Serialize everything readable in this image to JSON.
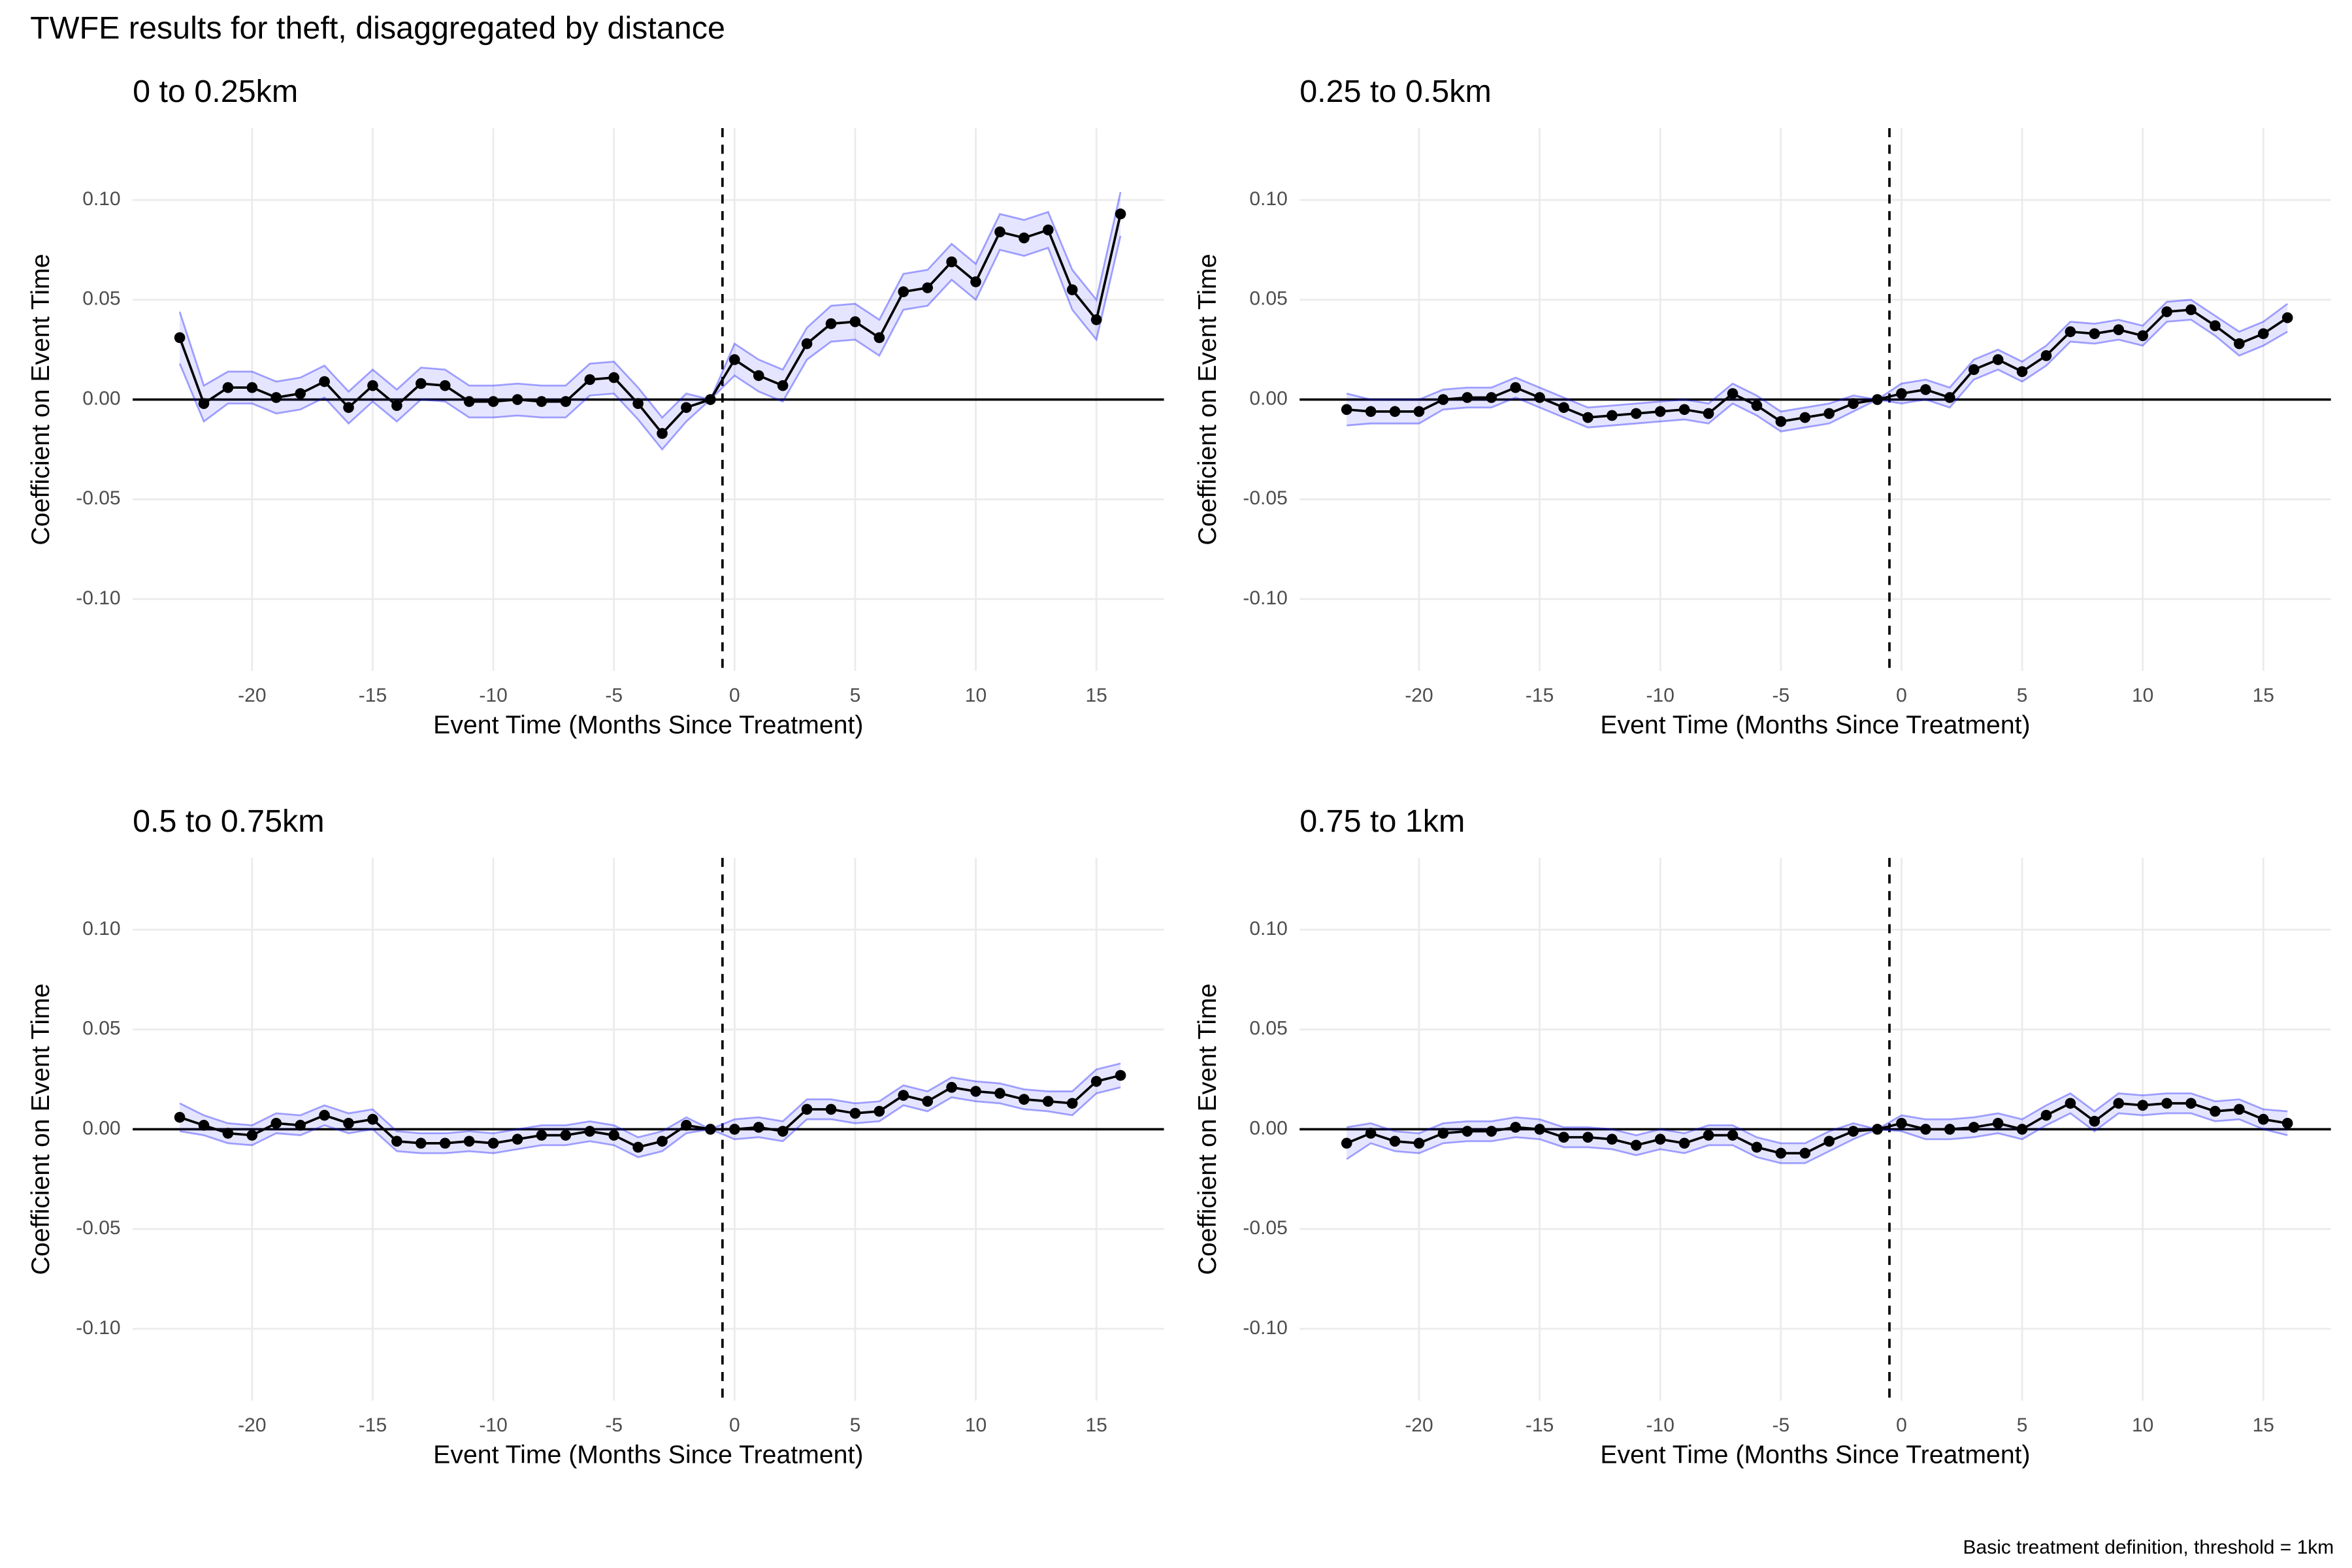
{
  "title": "TWFE results for theft, disaggregated by distance",
  "caption": "Basic treatment definition, threshold = 1km",
  "chart_data": [
    {
      "type": "line",
      "title": "0 to 0.25km",
      "xlabel": "Event Time (Months Since Treatment)",
      "ylabel": "Coefficient on Event Time",
      "x": [
        -23,
        -22,
        -21,
        -20,
        -19,
        -18,
        -17,
        -16,
        -15,
        -14,
        -13,
        -12,
        -11,
        -10,
        -9,
        -8,
        -7,
        -6,
        -5,
        -4,
        -3,
        -2,
        -1,
        0,
        1,
        2,
        3,
        4,
        5,
        6,
        7,
        8,
        9,
        10,
        11,
        12,
        13,
        14,
        15,
        16
      ],
      "series": [
        {
          "color": "#000000",
          "band_color": "#0000ff",
          "values": [
            0.031,
            -0.002,
            0.006,
            0.006,
            0.001,
            0.003,
            0.009,
            -0.004,
            0.007,
            -0.003,
            0.008,
            0.007,
            -0.001,
            -0.001,
            0.0,
            -0.001,
            -0.001,
            0.01,
            0.011,
            -0.002,
            -0.017,
            -0.004,
            0,
            0.02,
            0.012,
            0.007,
            0.028,
            0.038,
            0.039,
            0.031,
            0.054,
            0.056,
            0.069,
            0.059,
            0.084,
            0.081,
            0.085,
            0.055,
            0.04,
            0.093
          ],
          "errors": [
            0.013,
            0.009,
            0.008,
            0.008,
            0.008,
            0.008,
            0.008,
            0.008,
            0.008,
            0.008,
            0.008,
            0.008,
            0.008,
            0.008,
            0.008,
            0.008,
            0.008,
            0.008,
            0.008,
            0.008,
            0.008,
            0.007,
            0,
            0.008,
            0.008,
            0.008,
            0.008,
            0.009,
            0.009,
            0.009,
            0.009,
            0.009,
            0.009,
            0.009,
            0.009,
            0.009,
            0.009,
            0.01,
            0.01,
            0.011
          ]
        }
      ],
      "xlim": [
        -24.95,
        17.8
      ],
      "ylim": [
        -0.136,
        0.136
      ],
      "xticks": [
        -20,
        -15,
        -10,
        -5,
        0,
        5,
        10,
        15
      ],
      "yticks": [
        {
          "value": -0.1,
          "label": "-0.10"
        },
        -0.05,
        {
          "value": 0,
          "label": "0.00"
        },
        0.05,
        {
          "value": 0.1,
          "label": "0.10"
        }
      ],
      "vline": -0.5,
      "hline": 0,
      "grid": true
    },
    {
      "type": "line",
      "title": "0.25 to 0.5km",
      "xlabel": "Event Time (Months Since Treatment)",
      "ylabel": "Coefficient on Event Time",
      "x": [
        -23,
        -22,
        -21,
        -20,
        -19,
        -18,
        -17,
        -16,
        -15,
        -14,
        -13,
        -12,
        -11,
        -10,
        -9,
        -8,
        -7,
        -6,
        -5,
        -4,
        -3,
        -2,
        -1,
        0,
        1,
        2,
        3,
        4,
        5,
        6,
        7,
        8,
        9,
        10,
        11,
        12,
        13,
        14,
        15,
        16
      ],
      "series": [
        {
          "color": "#000000",
          "band_color": "#0000ff",
          "values": [
            -0.005,
            -0.006,
            -0.006,
            -0.006,
            0.0,
            0.001,
            0.001,
            0.006,
            0.001,
            -0.004,
            -0.009,
            -0.008,
            -0.007,
            -0.006,
            -0.005,
            -0.007,
            0.003,
            -0.003,
            -0.011,
            -0.009,
            -0.007,
            -0.002,
            0,
            0.003,
            0.005,
            0.001,
            0.015,
            0.02,
            0.014,
            0.022,
            0.034,
            0.033,
            0.035,
            0.032,
            0.044,
            0.045,
            0.037,
            0.028,
            0.033,
            0.041
          ],
          "errors": [
            0.008,
            0.006,
            0.006,
            0.006,
            0.005,
            0.005,
            0.005,
            0.005,
            0.005,
            0.005,
            0.005,
            0.005,
            0.005,
            0.005,
            0.005,
            0.005,
            0.005,
            0.005,
            0.005,
            0.005,
            0.005,
            0.004,
            0,
            0.005,
            0.005,
            0.005,
            0.005,
            0.005,
            0.005,
            0.005,
            0.005,
            0.005,
            0.005,
            0.005,
            0.005,
            0.005,
            0.005,
            0.006,
            0.006,
            0.007
          ]
        }
      ],
      "xlim": [
        -24.95,
        17.8
      ],
      "ylim": [
        -0.136,
        0.136
      ],
      "xticks": [
        -20,
        -15,
        -10,
        -5,
        0,
        5,
        10,
        15
      ],
      "yticks": [
        {
          "value": -0.1,
          "label": "-0.10"
        },
        -0.05,
        {
          "value": 0,
          "label": "0.00"
        },
        0.05,
        {
          "value": 0.1,
          "label": "0.10"
        }
      ],
      "vline": -0.5,
      "hline": 0,
      "grid": true
    },
    {
      "type": "line",
      "title": "0.5 to 0.75km",
      "xlabel": "Event Time (Months Since Treatment)",
      "ylabel": "Coefficient on Event Time",
      "x": [
        -23,
        -22,
        -21,
        -20,
        -19,
        -18,
        -17,
        -16,
        -15,
        -14,
        -13,
        -12,
        -11,
        -10,
        -9,
        -8,
        -7,
        -6,
        -5,
        -4,
        -3,
        -2,
        -1,
        0,
        1,
        2,
        3,
        4,
        5,
        6,
        7,
        8,
        9,
        10,
        11,
        12,
        13,
        14,
        15,
        16
      ],
      "series": [
        {
          "color": "#000000",
          "band_color": "#0000ff",
          "values": [
            0.006,
            0.002,
            -0.002,
            -0.003,
            0.003,
            0.002,
            0.007,
            0.003,
            0.005,
            -0.006,
            -0.007,
            -0.007,
            -0.006,
            -0.007,
            -0.005,
            -0.003,
            -0.003,
            -0.001,
            -0.003,
            -0.009,
            -0.006,
            0.002,
            0,
            0.0,
            0.001,
            -0.001,
            0.01,
            0.01,
            0.008,
            0.009,
            0.017,
            0.014,
            0.021,
            0.019,
            0.018,
            0.015,
            0.014,
            0.013,
            0.024,
            0.027
          ],
          "errors": [
            0.007,
            0.005,
            0.005,
            0.005,
            0.005,
            0.005,
            0.005,
            0.005,
            0.005,
            0.005,
            0.005,
            0.005,
            0.005,
            0.005,
            0.005,
            0.005,
            0.005,
            0.005,
            0.005,
            0.005,
            0.005,
            0.004,
            0,
            0.005,
            0.005,
            0.005,
            0.005,
            0.005,
            0.005,
            0.005,
            0.005,
            0.005,
            0.005,
            0.005,
            0.005,
            0.005,
            0.005,
            0.006,
            0.006,
            0.006
          ]
        }
      ],
      "xlim": [
        -24.95,
        17.8
      ],
      "ylim": [
        -0.136,
        0.136
      ],
      "xticks": [
        -20,
        -15,
        -10,
        -5,
        0,
        5,
        10,
        15
      ],
      "yticks": [
        {
          "value": -0.1,
          "label": "-0.10"
        },
        -0.05,
        {
          "value": 0,
          "label": "0.00"
        },
        0.05,
        {
          "value": 0.1,
          "label": "0.10"
        }
      ],
      "vline": -0.5,
      "hline": 0,
      "grid": true
    },
    {
      "type": "line",
      "title": "0.75 to 1km",
      "xlabel": "Event Time (Months Since Treatment)",
      "ylabel": "Coefficient on Event Time",
      "x": [
        -23,
        -22,
        -21,
        -20,
        -19,
        -18,
        -17,
        -16,
        -15,
        -14,
        -13,
        -12,
        -11,
        -10,
        -9,
        -8,
        -7,
        -6,
        -5,
        -4,
        -3,
        -2,
        -1,
        0,
        1,
        2,
        3,
        4,
        5,
        6,
        7,
        8,
        9,
        10,
        11,
        12,
        13,
        14,
        15,
        16
      ],
      "series": [
        {
          "color": "#000000",
          "band_color": "#0000ff",
          "values": [
            -0.007,
            -0.002,
            -0.006,
            -0.007,
            -0.002,
            -0.001,
            -0.001,
            0.001,
            0.0,
            -0.004,
            -0.004,
            -0.005,
            -0.008,
            -0.005,
            -0.007,
            -0.003,
            -0.003,
            -0.009,
            -0.012,
            -0.012,
            -0.006,
            -0.001,
            0,
            0.003,
            0,
            0,
            0.001,
            0.003,
            0.0,
            0.007,
            0.013,
            0.004,
            0.013,
            0.012,
            0.013,
            0.013,
            0.009,
            0.01,
            0.005,
            0.003
          ],
          "errors": [
            0.008,
            0.005,
            0.005,
            0.005,
            0.005,
            0.005,
            0.005,
            0.005,
            0.005,
            0.005,
            0.005,
            0.005,
            0.005,
            0.005,
            0.005,
            0.005,
            0.005,
            0.005,
            0.005,
            0.005,
            0.005,
            0.004,
            0,
            0.004,
            0.005,
            0.005,
            0.005,
            0.005,
            0.005,
            0.005,
            0.005,
            0.005,
            0.005,
            0.005,
            0.005,
            0.005,
            0.005,
            0.005,
            0.005,
            0.006
          ]
        }
      ],
      "xlim": [
        -24.95,
        17.8
      ],
      "ylim": [
        -0.136,
        0.136
      ],
      "xticks": [
        -20,
        -15,
        -10,
        -5,
        0,
        5,
        10,
        15
      ],
      "yticks": [
        {
          "value": -0.1,
          "label": "-0.10"
        },
        -0.05,
        {
          "value": 0,
          "label": "0.00"
        },
        0.05,
        {
          "value": 0.1,
          "label": "0.10"
        }
      ],
      "vline": -0.5,
      "hline": 0,
      "grid": true
    }
  ]
}
